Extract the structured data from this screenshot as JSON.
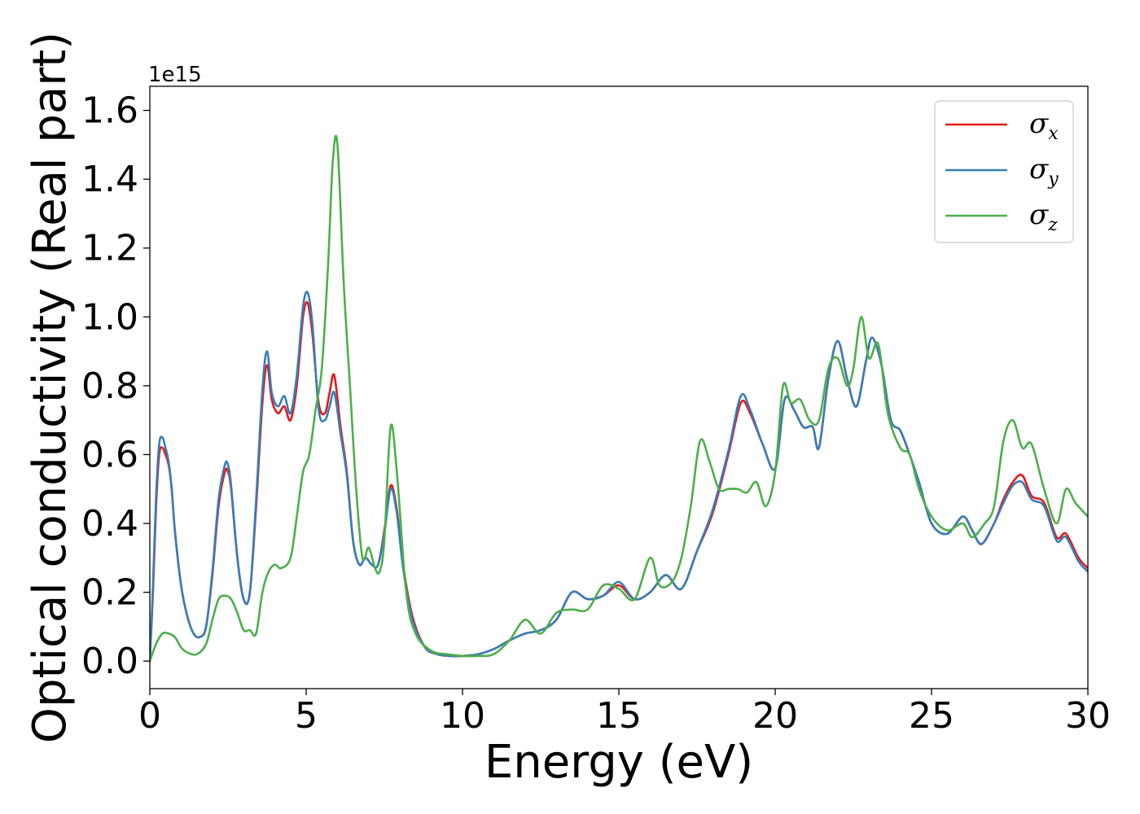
{
  "chart_data": {
    "type": "line",
    "title": "",
    "xlabel": "Energy (eV)",
    "ylabel": "Optical conductivity (Real part)",
    "y_offset_label": "1e15",
    "xlim": [
      0,
      30
    ],
    "ylim": [
      -0.08,
      1.67
    ],
    "xticks": [
      0,
      5,
      10,
      15,
      20,
      25,
      30
    ],
    "yticks": [
      0.0,
      0.2,
      0.4,
      0.6,
      0.8,
      1.0,
      1.2,
      1.4,
      1.6
    ],
    "grid": false,
    "legend_position": "top-right",
    "series": [
      {
        "name": "σx",
        "legend_base": "σ",
        "legend_sub": "x",
        "color": "#e41a1c",
        "x": [
          0,
          0.1,
          0.2,
          0.3,
          0.4,
          0.5,
          0.6,
          0.7,
          0.8,
          1.0,
          1.2,
          1.4,
          1.6,
          1.8,
          2.0,
          2.2,
          2.4,
          2.5,
          2.6,
          2.8,
          3.0,
          3.2,
          3.4,
          3.6,
          3.75,
          3.9,
          4.1,
          4.3,
          4.5,
          4.7,
          4.9,
          5.05,
          5.2,
          5.4,
          5.6,
          5.75,
          5.9,
          6.1,
          6.3,
          6.5,
          6.7,
          6.9,
          7.1,
          7.3,
          7.5,
          7.7,
          7.9,
          8.1,
          8.4,
          8.8,
          9.2,
          9.6,
          10.0,
          10.5,
          11.0,
          11.5,
          12.0,
          12.5,
          13.0,
          13.5,
          14.0,
          14.5,
          15.0,
          15.5,
          16.0,
          16.5,
          17.0,
          17.5,
          18.0,
          18.5,
          18.9,
          19.2,
          19.6,
          20.0,
          20.3,
          20.6,
          20.9,
          21.2,
          21.4,
          21.7,
          22.0,
          22.3,
          22.6,
          22.9,
          23.1,
          23.4,
          23.7,
          24.0,
          24.3,
          24.6,
          25.0,
          25.5,
          26.0,
          26.3,
          26.6,
          27.0,
          27.3,
          27.6,
          27.9,
          28.2,
          28.6,
          29.0,
          29.3,
          29.7,
          30.0
        ],
        "y": [
          0.0,
          0.2,
          0.45,
          0.6,
          0.62,
          0.6,
          0.57,
          0.5,
          0.38,
          0.22,
          0.13,
          0.08,
          0.07,
          0.1,
          0.25,
          0.45,
          0.55,
          0.55,
          0.5,
          0.3,
          0.18,
          0.2,
          0.45,
          0.75,
          0.86,
          0.76,
          0.72,
          0.74,
          0.7,
          0.8,
          1.0,
          1.04,
          0.95,
          0.75,
          0.72,
          0.78,
          0.83,
          0.68,
          0.55,
          0.35,
          0.28,
          0.3,
          0.28,
          0.28,
          0.38,
          0.51,
          0.44,
          0.28,
          0.13,
          0.04,
          0.02,
          0.015,
          0.015,
          0.02,
          0.035,
          0.06,
          0.08,
          0.09,
          0.12,
          0.2,
          0.18,
          0.19,
          0.22,
          0.18,
          0.2,
          0.25,
          0.21,
          0.32,
          0.43,
          0.6,
          0.75,
          0.72,
          0.63,
          0.56,
          0.76,
          0.73,
          0.68,
          0.68,
          0.62,
          0.82,
          0.93,
          0.82,
          0.74,
          0.87,
          0.94,
          0.86,
          0.7,
          0.67,
          0.6,
          0.52,
          0.4,
          0.37,
          0.42,
          0.38,
          0.34,
          0.4,
          0.47,
          0.52,
          0.54,
          0.48,
          0.46,
          0.36,
          0.37,
          0.3,
          0.27
        ]
      },
      {
        "name": "σy",
        "legend_base": "σ",
        "legend_sub": "y",
        "color": "#377eb8",
        "x": [
          0,
          0.1,
          0.2,
          0.3,
          0.4,
          0.5,
          0.6,
          0.7,
          0.8,
          1.0,
          1.2,
          1.4,
          1.6,
          1.8,
          2.0,
          2.2,
          2.4,
          2.5,
          2.6,
          2.8,
          3.0,
          3.2,
          3.4,
          3.6,
          3.75,
          3.9,
          4.1,
          4.3,
          4.5,
          4.7,
          4.9,
          5.05,
          5.2,
          5.4,
          5.6,
          5.75,
          5.9,
          6.1,
          6.3,
          6.5,
          6.7,
          6.9,
          7.1,
          7.3,
          7.5,
          7.7,
          7.9,
          8.1,
          8.4,
          8.8,
          9.2,
          9.6,
          10.0,
          10.5,
          11.0,
          11.5,
          12.0,
          12.5,
          13.0,
          13.5,
          14.0,
          14.5,
          15.0,
          15.5,
          16.0,
          16.5,
          17.0,
          17.5,
          18.0,
          18.5,
          18.9,
          19.2,
          19.6,
          20.0,
          20.3,
          20.6,
          20.9,
          21.2,
          21.4,
          21.7,
          22.0,
          22.3,
          22.6,
          22.9,
          23.1,
          23.4,
          23.7,
          24.0,
          24.3,
          24.6,
          25.0,
          25.5,
          26.0,
          26.3,
          26.6,
          27.0,
          27.3,
          27.6,
          27.9,
          28.2,
          28.6,
          29.0,
          29.3,
          29.7,
          30.0
        ],
        "y": [
          0.0,
          0.22,
          0.48,
          0.63,
          0.65,
          0.62,
          0.58,
          0.5,
          0.38,
          0.22,
          0.13,
          0.08,
          0.07,
          0.1,
          0.26,
          0.47,
          0.57,
          0.57,
          0.51,
          0.3,
          0.18,
          0.2,
          0.47,
          0.79,
          0.9,
          0.78,
          0.74,
          0.77,
          0.72,
          0.83,
          1.03,
          1.07,
          0.98,
          0.73,
          0.7,
          0.74,
          0.78,
          0.66,
          0.54,
          0.35,
          0.28,
          0.3,
          0.28,
          0.28,
          0.37,
          0.5,
          0.43,
          0.27,
          0.12,
          0.04,
          0.02,
          0.015,
          0.015,
          0.02,
          0.035,
          0.06,
          0.08,
          0.09,
          0.12,
          0.2,
          0.18,
          0.19,
          0.23,
          0.18,
          0.2,
          0.25,
          0.21,
          0.32,
          0.44,
          0.61,
          0.77,
          0.73,
          0.63,
          0.56,
          0.76,
          0.73,
          0.68,
          0.68,
          0.62,
          0.82,
          0.93,
          0.82,
          0.74,
          0.87,
          0.94,
          0.86,
          0.7,
          0.67,
          0.6,
          0.52,
          0.4,
          0.37,
          0.42,
          0.38,
          0.34,
          0.4,
          0.46,
          0.51,
          0.52,
          0.47,
          0.45,
          0.35,
          0.36,
          0.29,
          0.26
        ]
      },
      {
        "name": "σz",
        "legend_base": "σ",
        "legend_sub": "z",
        "color": "#4daf4a",
        "x": [
          0,
          0.2,
          0.4,
          0.6,
          0.8,
          1.0,
          1.2,
          1.5,
          1.8,
          2.0,
          2.2,
          2.4,
          2.6,
          2.8,
          3.0,
          3.2,
          3.4,
          3.6,
          3.8,
          4.0,
          4.2,
          4.5,
          4.7,
          4.9,
          5.1,
          5.3,
          5.5,
          5.7,
          5.85,
          6.0,
          6.2,
          6.4,
          6.6,
          6.8,
          7.0,
          7.2,
          7.35,
          7.5,
          7.7,
          7.9,
          8.2,
          8.5,
          9.0,
          9.5,
          10.0,
          10.5,
          11.0,
          11.5,
          12.0,
          12.5,
          13.0,
          13.5,
          14.0,
          14.5,
          15.0,
          15.5,
          16.0,
          16.3,
          16.7,
          17.0,
          17.3,
          17.6,
          17.9,
          18.2,
          18.5,
          18.8,
          19.1,
          19.4,
          19.7,
          20.0,
          20.25,
          20.5,
          20.8,
          21.1,
          21.4,
          21.7,
          22.0,
          22.3,
          22.5,
          22.75,
          23.0,
          23.3,
          23.6,
          24.0,
          24.3,
          24.6,
          25.0,
          25.5,
          26.0,
          26.3,
          26.7,
          27.0,
          27.3,
          27.6,
          27.9,
          28.2,
          28.6,
          29.0,
          29.3,
          29.6,
          30.0
        ],
        "y": [
          0.0,
          0.05,
          0.08,
          0.08,
          0.07,
          0.04,
          0.025,
          0.02,
          0.05,
          0.12,
          0.18,
          0.19,
          0.18,
          0.14,
          0.09,
          0.09,
          0.08,
          0.2,
          0.26,
          0.28,
          0.27,
          0.3,
          0.42,
          0.55,
          0.6,
          0.73,
          0.85,
          1.15,
          1.45,
          1.5,
          1.1,
          0.8,
          0.5,
          0.3,
          0.33,
          0.27,
          0.26,
          0.35,
          0.68,
          0.55,
          0.2,
          0.08,
          0.03,
          0.02,
          0.015,
          0.015,
          0.02,
          0.06,
          0.12,
          0.08,
          0.14,
          0.15,
          0.15,
          0.22,
          0.21,
          0.18,
          0.3,
          0.22,
          0.23,
          0.3,
          0.45,
          0.64,
          0.58,
          0.5,
          0.5,
          0.5,
          0.49,
          0.52,
          0.45,
          0.55,
          0.8,
          0.75,
          0.76,
          0.7,
          0.7,
          0.85,
          0.88,
          0.8,
          0.85,
          1.0,
          0.88,
          0.92,
          0.72,
          0.62,
          0.6,
          0.5,
          0.42,
          0.38,
          0.4,
          0.36,
          0.4,
          0.45,
          0.64,
          0.7,
          0.62,
          0.63,
          0.5,
          0.4,
          0.5,
          0.46,
          0.42
        ]
      }
    ]
  }
}
